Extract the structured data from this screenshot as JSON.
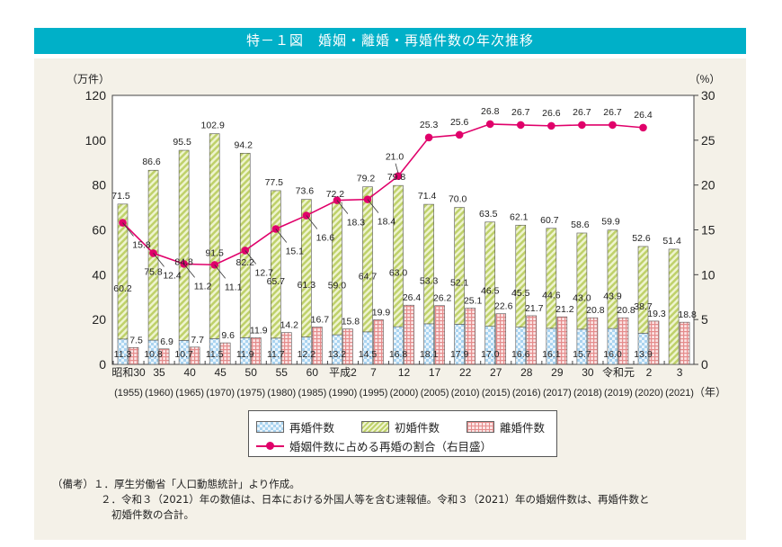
{
  "title": "特－１図　婚姻・離婚・再婚件数の年次推移",
  "chart_data": {
    "type": "bar",
    "left_unit": "（万件）",
    "right_unit": "（%）",
    "x_unit": "（年）",
    "left_ylim": [
      0,
      120
    ],
    "left_ticks": [
      "0",
      "20",
      "40",
      "60",
      "80",
      "100",
      "120"
    ],
    "right_ylim": [
      0,
      30
    ],
    "right_ticks": [
      "0",
      "5",
      "10",
      "15",
      "20",
      "25",
      "30"
    ],
    "categories": [
      "昭和30",
      "35",
      "40",
      "45",
      "50",
      "55",
      "60",
      "平成2",
      "7",
      "12",
      "17",
      "22",
      "27",
      "28",
      "29",
      "30",
      "令和元",
      "2",
      "3"
    ],
    "categories_year": [
      "(1955)",
      "(1960)",
      "(1965)",
      "(1970)",
      "(1975)",
      "(1980)",
      "(1985)",
      "(1990)",
      "(1995)",
      "(2000)",
      "(2005)",
      "(2010)",
      "(2015)",
      "(2016)",
      "(2017)",
      "(2018)",
      "(2019)",
      "(2020)",
      "(2021)"
    ],
    "marriage_totals": [
      71.5,
      86.6,
      95.5,
      102.9,
      94.2,
      77.5,
      73.6,
      72.2,
      79.2,
      79.8,
      71.4,
      70.0,
      63.5,
      62.1,
      60.7,
      58.6,
      59.9,
      52.6,
      51.4
    ],
    "series": [
      {
        "name": "再婚件数",
        "type": "stacked-bar",
        "axis": "left",
        "color": "#a9d3f0",
        "values": [
          11.3,
          10.8,
          10.7,
          11.5,
          11.9,
          11.7,
          12.2,
          13.2,
          14.5,
          16.8,
          18.1,
          17.9,
          17.0,
          16.6,
          16.1,
          15.7,
          16.0,
          13.9,
          null
        ]
      },
      {
        "name": "初婚件数",
        "type": "stacked-bar",
        "axis": "left",
        "color": "#d6e59a",
        "values": [
          60.2,
          75.8,
          84.8,
          91.5,
          82.2,
          65.7,
          61.3,
          59.0,
          64.7,
          63.0,
          53.3,
          52.1,
          46.5,
          45.5,
          44.6,
          43.0,
          43.9,
          38.7,
          null
        ]
      },
      {
        "name": "離婚件数",
        "type": "bar",
        "axis": "left",
        "color": "#f3b8b8",
        "values": [
          7.5,
          6.9,
          7.7,
          9.6,
          11.9,
          14.2,
          16.7,
          15.8,
          19.9,
          26.4,
          26.2,
          25.1,
          22.6,
          21.7,
          21.2,
          20.8,
          20.8,
          19.3,
          18.8
        ]
      },
      {
        "name": "婚姻件数に占める再婚の割合（右目盛）",
        "type": "line",
        "axis": "right",
        "color": "#e0006a",
        "values": [
          15.8,
          12.4,
          11.2,
          11.1,
          12.7,
          15.1,
          16.6,
          18.3,
          18.4,
          21.0,
          25.3,
          25.6,
          26.8,
          26.7,
          26.6,
          26.7,
          26.7,
          26.4,
          null
        ]
      }
    ]
  },
  "notes": [
    "（備考）１．厚生労働省「人口動態統計」より作成。",
    "２．令和３（2021）年の数値は、日本における外国人等を含む速報値。令和３（2021）年の婚姻件数は、再婚件数と",
    "初婚件数の合計。"
  ]
}
